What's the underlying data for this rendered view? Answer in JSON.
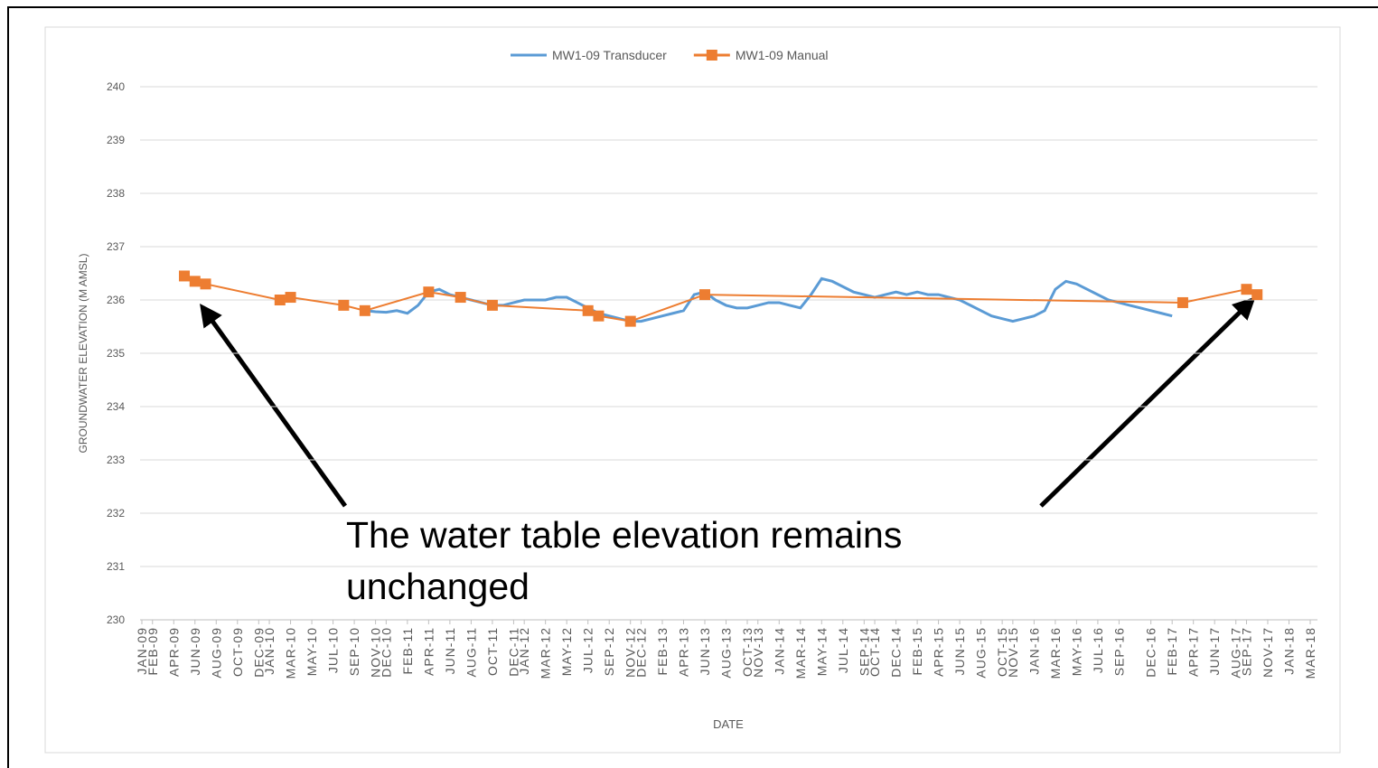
{
  "chart_data": {
    "type": "line",
    "legend": "top",
    "xlabel": "DATE",
    "ylabel": "GROUNDWATER ELEVATION (M AMSL)",
    "annotation": "The water table elevation remains unchanged",
    "xlim": [
      "JAN-09",
      "MAR-18"
    ],
    "ylim": [
      230,
      240
    ],
    "yticks": [
      230,
      231,
      232,
      233,
      234,
      235,
      236,
      237,
      238,
      239,
      240
    ],
    "grid": true,
    "xticks": [
      "JAN-09",
      "FEB-09",
      "APR-09",
      "JUN-09",
      "AUG-09",
      "OCT-09",
      "DEC-09",
      "JAN-10",
      "MAR-10",
      "MAY-10",
      "JUL-10",
      "SEP-10",
      "NOV-10",
      "DEC-10",
      "FEB-11",
      "APR-11",
      "JUN-11",
      "AUG-11",
      "OCT-11",
      "DEC-11",
      "JAN-12",
      "MAR-12",
      "MAY-12",
      "JUL-12",
      "SEP-12",
      "NOV-12",
      "DEC-12",
      "FEB-13",
      "APR-13",
      "JUN-13",
      "AUG-13",
      "OCT-13",
      "NOV-13",
      "JAN-14",
      "MAR-14",
      "MAY-14",
      "JUL-14",
      "SEP-14",
      "OCT-14",
      "DEC-14",
      "FEB-15",
      "APR-15",
      "JUN-15",
      "AUG-15",
      "OCT-15",
      "NOV-15",
      "JAN-16",
      "MAR-16",
      "MAY-16",
      "JUL-16",
      "SEP-16",
      "DEC-16",
      "FEB-17",
      "APR-17",
      "JUN-17",
      "AUG-17",
      "SEP-17",
      "NOV-17",
      "JAN-18",
      "MAR-18"
    ],
    "series": [
      {
        "name": "MW1-09 Transducer",
        "color": "#5b9bd5",
        "marker": "none",
        "x": [
          "OCT-10",
          "NOV-10",
          "DEC-10",
          "JAN-11",
          "FEB-11",
          "MAR-11",
          "APR-11",
          "MAY-11",
          "JUN-11",
          "JUL-11",
          "AUG-11",
          "SEP-11",
          "OCT-11",
          "NOV-11",
          "DEC-11",
          "JAN-12",
          "FEB-12",
          "MAR-12",
          "APR-12",
          "MAY-12",
          "JUN-12",
          "JUL-12",
          "AUG-12",
          "SEP-12",
          "OCT-12",
          "NOV-12",
          "DEC-12",
          "JAN-13",
          "FEB-13",
          "MAR-13",
          "APR-13",
          "MAY-13",
          "JUN-13",
          "JUL-13",
          "AUG-13",
          "SEP-13",
          "OCT-13",
          "NOV-13",
          "DEC-13",
          "JAN-14",
          "FEB-14",
          "MAR-14",
          "APR-14",
          "MAY-14",
          "JUN-14",
          "JUL-14",
          "AUG-14",
          "SEP-14",
          "OCT-14",
          "NOV-14",
          "DEC-14",
          "JAN-15",
          "FEB-15",
          "MAR-15",
          "APR-15",
          "MAY-15",
          "JUN-15",
          "JUL-15",
          "AUG-15",
          "SEP-15",
          "OCT-15",
          "NOV-15",
          "DEC-15",
          "JAN-16",
          "FEB-16",
          "MAR-16",
          "APR-16",
          "MAY-16",
          "JUN-16",
          "JUL-16",
          "AUG-16",
          "SEP-16",
          "OCT-16",
          "NOV-16",
          "DEC-16",
          "JAN-17",
          "FEB-17"
        ],
        "values": [
          235.8,
          235.78,
          235.77,
          235.8,
          235.75,
          235.9,
          236.15,
          236.2,
          236.1,
          236.05,
          236.0,
          235.95,
          235.9,
          235.9,
          235.95,
          236.0,
          236.0,
          236.0,
          236.05,
          236.05,
          235.95,
          235.85,
          235.75,
          235.7,
          235.65,
          235.6,
          235.6,
          235.65,
          235.7,
          235.75,
          235.8,
          236.1,
          236.15,
          236.0,
          235.9,
          235.85,
          235.85,
          235.9,
          235.95,
          235.95,
          235.9,
          235.85,
          236.1,
          236.4,
          236.35,
          236.25,
          236.15,
          236.1,
          236.05,
          236.1,
          236.15,
          236.1,
          236.15,
          236.1,
          236.1,
          236.05,
          236.0,
          235.9,
          235.8,
          235.7,
          235.65,
          235.6,
          235.65,
          235.7,
          235.8,
          236.2,
          236.35,
          236.3,
          236.2,
          236.1,
          236.0,
          235.95,
          235.9,
          235.85,
          235.8,
          235.75,
          235.7
        ]
      },
      {
        "name": "MW1-09 Manual",
        "color": "#ed7d31",
        "marker": "square",
        "x": [
          "MAY-09",
          "JUN-09",
          "JUL-09",
          "FEB-10",
          "MAR-10",
          "AUG-10",
          "OCT-10",
          "APR-11",
          "JUL-11",
          "OCT-11",
          "JUL-12",
          "AUG-12",
          "NOV-12",
          "JUN-13",
          "MAR-17",
          "SEP-17",
          "OCT-17"
        ],
        "values": [
          236.45,
          236.35,
          236.3,
          236.0,
          236.05,
          235.9,
          235.8,
          236.15,
          236.05,
          235.9,
          235.8,
          235.7,
          235.6,
          236.1,
          235.95,
          236.2,
          236.1
        ]
      }
    ]
  }
}
